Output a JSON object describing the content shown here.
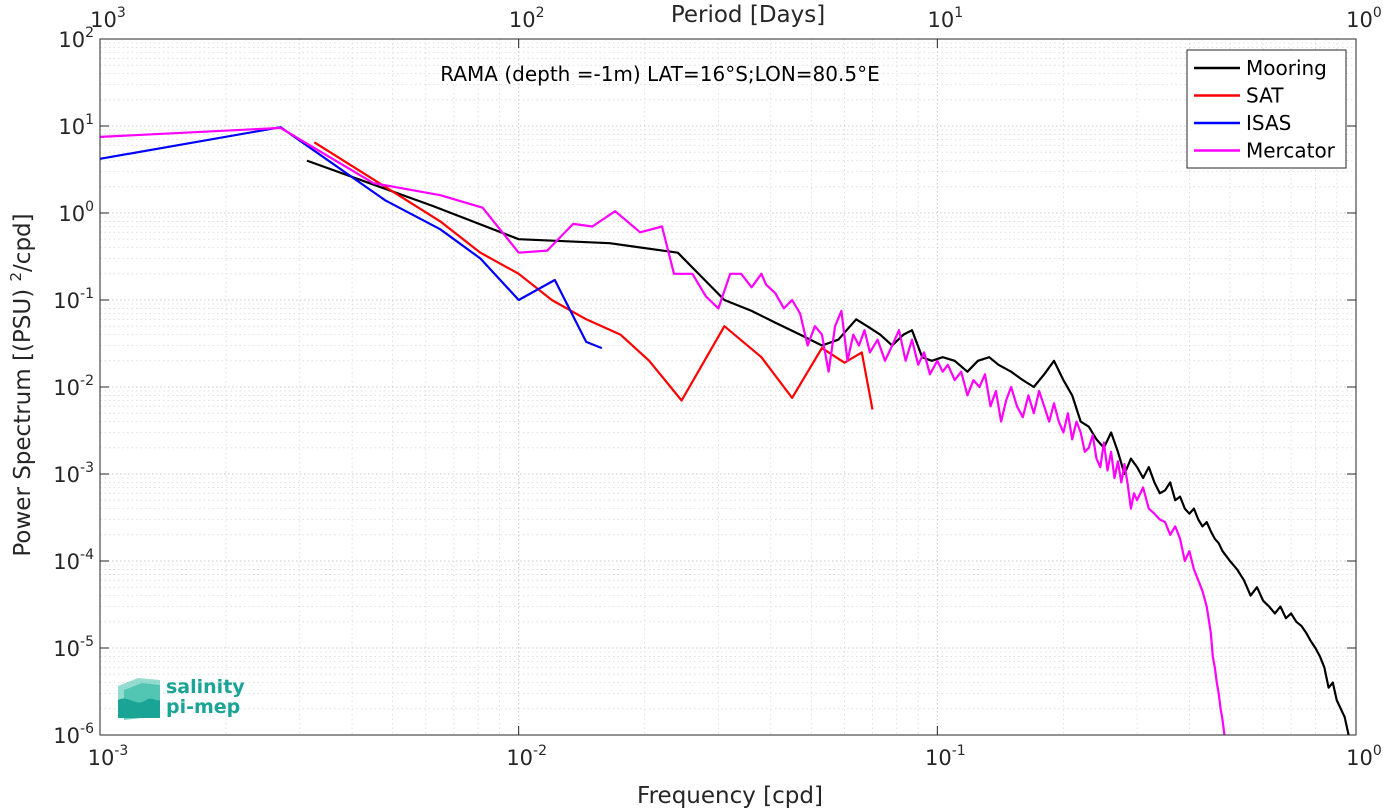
{
  "chart_data": {
    "type": "line",
    "title": "",
    "annotation": "RAMA (depth =-1m) LAT=16°S;LON=80.5°E",
    "xlabel": "Frequency [cpd]",
    "ylabel": "Power Spectrum [(PSU)²/cpd]",
    "top_xlabel": "Period [Days]",
    "x_scale": "log",
    "y_scale": "log",
    "xlim": [
      0.001,
      1
    ],
    "ylim": [
      1e-06,
      100
    ],
    "grid": true,
    "minor_grid": true,
    "legend_position": "top-right",
    "x_ticks": [
      0.001,
      0.01,
      0.1,
      1
    ],
    "x_tick_labels": [
      {
        "base": "10",
        "exp": "-3"
      },
      {
        "base": "10",
        "exp": "-2"
      },
      {
        "base": "10",
        "exp": "-1"
      },
      {
        "base": "10",
        "exp": "0"
      }
    ],
    "top_tick_labels": [
      {
        "base": "10",
        "exp": "3"
      },
      {
        "base": "10",
        "exp": "2"
      },
      {
        "base": "10",
        "exp": "1"
      },
      {
        "base": "10",
        "exp": "0"
      }
    ],
    "y_ticks": [
      1e-06,
      1e-05,
      0.0001,
      0.001,
      0.01,
      0.1,
      1,
      10,
      100
    ],
    "y_tick_labels": [
      {
        "base": "10",
        "exp": "-6"
      },
      {
        "base": "10",
        "exp": "-5"
      },
      {
        "base": "10",
        "exp": "-4"
      },
      {
        "base": "10",
        "exp": "-3"
      },
      {
        "base": "10",
        "exp": "-2"
      },
      {
        "base": "10",
        "exp": "-1"
      },
      {
        "base": "10",
        "exp": "0"
      },
      {
        "base": "10",
        "exp": "1"
      },
      {
        "base": "10",
        "exp": "2"
      }
    ],
    "series": [
      {
        "name": "Mooring",
        "color": "#000000",
        "points": [
          [
            0.00312,
            4.0
          ],
          [
            0.00625,
            1.2
          ],
          [
            0.01,
            0.5
          ],
          [
            0.0165,
            0.45
          ],
          [
            0.024,
            0.35
          ],
          [
            0.031,
            0.1
          ],
          [
            0.036,
            0.075
          ],
          [
            0.041,
            0.055
          ],
          [
            0.047,
            0.04
          ],
          [
            0.053,
            0.03
          ],
          [
            0.058,
            0.035
          ],
          [
            0.064,
            0.06
          ],
          [
            0.068,
            0.05
          ],
          [
            0.073,
            0.04
          ],
          [
            0.078,
            0.03
          ],
          [
            0.083,
            0.04
          ],
          [
            0.087,
            0.045
          ],
          [
            0.092,
            0.022
          ],
          [
            0.097,
            0.02
          ],
          [
            0.103,
            0.022
          ],
          [
            0.11,
            0.02
          ],
          [
            0.118,
            0.015
          ],
          [
            0.125,
            0.02
          ],
          [
            0.133,
            0.022
          ],
          [
            0.14,
            0.018
          ],
          [
            0.15,
            0.015
          ],
          [
            0.16,
            0.012
          ],
          [
            0.17,
            0.01
          ],
          [
            0.18,
            0.014
          ],
          [
            0.19,
            0.02
          ],
          [
            0.2,
            0.012
          ],
          [
            0.21,
            0.008
          ],
          [
            0.22,
            0.004
          ],
          [
            0.23,
            0.0035
          ],
          [
            0.24,
            0.0025
          ],
          [
            0.25,
            0.002
          ],
          [
            0.26,
            0.003
          ],
          [
            0.27,
            0.0018
          ],
          [
            0.28,
            0.001
          ],
          [
            0.29,
            0.0015
          ],
          [
            0.3,
            0.0012
          ],
          [
            0.31,
            0.0009
          ],
          [
            0.32,
            0.0012
          ],
          [
            0.33,
            0.0008
          ],
          [
            0.34,
            0.0006
          ],
          [
            0.35,
            0.00065
          ],
          [
            0.36,
            0.0008
          ],
          [
            0.37,
            0.0005
          ],
          [
            0.38,
            0.00055
          ],
          [
            0.39,
            0.0004
          ],
          [
            0.4,
            0.00035
          ],
          [
            0.41,
            0.0004
          ],
          [
            0.42,
            0.0003
          ],
          [
            0.43,
            0.00025
          ],
          [
            0.44,
            0.00028
          ],
          [
            0.45,
            0.00022
          ],
          [
            0.46,
            0.00018
          ],
          [
            0.47,
            0.00016
          ],
          [
            0.48,
            0.00013
          ],
          [
            0.5,
            0.0001
          ],
          [
            0.52,
            8e-05
          ],
          [
            0.54,
            6e-05
          ],
          [
            0.56,
            4e-05
          ],
          [
            0.58,
            5e-05
          ],
          [
            0.6,
            3.5e-05
          ],
          [
            0.62,
            3e-05
          ],
          [
            0.64,
            2.5e-05
          ],
          [
            0.66,
            3e-05
          ],
          [
            0.68,
            2.2e-05
          ],
          [
            0.7,
            2.5e-05
          ],
          [
            0.72,
            2e-05
          ],
          [
            0.74,
            1.8e-05
          ],
          [
            0.76,
            1.5e-05
          ],
          [
            0.78,
            1.2e-05
          ],
          [
            0.8,
            1e-05
          ],
          [
            0.82,
            8e-06
          ],
          [
            0.84,
            6e-06
          ],
          [
            0.86,
            3.5e-06
          ],
          [
            0.88,
            4e-06
          ],
          [
            0.9,
            2.5e-06
          ],
          [
            0.92,
            2e-06
          ],
          [
            0.94,
            1.6e-06
          ],
          [
            0.96,
            1e-06
          ]
        ]
      },
      {
        "name": "SAT",
        "color": "#ff0000",
        "points": [
          [
            0.00325,
            6.5
          ],
          [
            0.0048,
            2.0
          ],
          [
            0.0065,
            0.8
          ],
          [
            0.0081,
            0.35
          ],
          [
            0.01,
            0.2
          ],
          [
            0.012,
            0.1
          ],
          [
            0.0145,
            0.06
          ],
          [
            0.0175,
            0.04
          ],
          [
            0.0205,
            0.02
          ],
          [
            0.0245,
            0.007
          ],
          [
            0.031,
            0.05
          ],
          [
            0.038,
            0.022
          ],
          [
            0.045,
            0.0075
          ],
          [
            0.053,
            0.028
          ],
          [
            0.06,
            0.019
          ],
          [
            0.066,
            0.025
          ],
          [
            0.07,
            0.0055
          ]
        ]
      },
      {
        "name": "ISAS",
        "color": "#0000ff",
        "points": [
          [
            0.001,
            4.2
          ],
          [
            0.0027,
            9.7
          ],
          [
            0.0048,
            1.4
          ],
          [
            0.0065,
            0.65
          ],
          [
            0.0081,
            0.3
          ],
          [
            0.01,
            0.1
          ],
          [
            0.0122,
            0.17
          ],
          [
            0.0145,
            0.033
          ],
          [
            0.0158,
            0.028
          ]
        ]
      },
      {
        "name": "Mercator",
        "color": "#ff00ff",
        "points": [
          [
            0.001,
            7.5
          ],
          [
            0.0027,
            9.5
          ],
          [
            0.0045,
            2.2
          ],
          [
            0.0065,
            1.6
          ],
          [
            0.0082,
            1.15
          ],
          [
            0.01,
            0.35
          ],
          [
            0.0117,
            0.37
          ],
          [
            0.0135,
            0.75
          ],
          [
            0.015,
            0.7
          ],
          [
            0.017,
            1.05
          ],
          [
            0.0195,
            0.6
          ],
          [
            0.022,
            0.7
          ],
          [
            0.0235,
            0.2
          ],
          [
            0.026,
            0.2
          ],
          [
            0.028,
            0.11
          ],
          [
            0.03,
            0.08
          ],
          [
            0.032,
            0.2
          ],
          [
            0.034,
            0.2
          ],
          [
            0.036,
            0.14
          ],
          [
            0.038,
            0.2
          ],
          [
            0.039,
            0.15
          ],
          [
            0.041,
            0.12
          ],
          [
            0.043,
            0.08
          ],
          [
            0.045,
            0.1
          ],
          [
            0.047,
            0.07
          ],
          [
            0.049,
            0.03
          ],
          [
            0.051,
            0.05
          ],
          [
            0.053,
            0.04
          ],
          [
            0.055,
            0.015
          ],
          [
            0.057,
            0.05
          ],
          [
            0.059,
            0.075
          ],
          [
            0.061,
            0.02
          ],
          [
            0.063,
            0.04
          ],
          [
            0.065,
            0.03
          ],
          [
            0.067,
            0.045
          ],
          [
            0.069,
            0.025
          ],
          [
            0.072,
            0.035
          ],
          [
            0.075,
            0.02
          ],
          [
            0.078,
            0.03
          ],
          [
            0.081,
            0.045
          ],
          [
            0.084,
            0.02
          ],
          [
            0.087,
            0.035
          ],
          [
            0.09,
            0.018
          ],
          [
            0.093,
            0.025
          ],
          [
            0.096,
            0.014
          ],
          [
            0.1,
            0.02
          ],
          [
            0.103,
            0.015
          ],
          [
            0.106,
            0.018
          ],
          [
            0.11,
            0.012
          ],
          [
            0.114,
            0.015
          ],
          [
            0.118,
            0.008
          ],
          [
            0.122,
            0.012
          ],
          [
            0.126,
            0.01
          ],
          [
            0.13,
            0.014
          ],
          [
            0.134,
            0.006
          ],
          [
            0.138,
            0.009
          ],
          [
            0.142,
            0.004
          ],
          [
            0.146,
            0.007
          ],
          [
            0.15,
            0.01
          ],
          [
            0.155,
            0.006
          ],
          [
            0.16,
            0.0045
          ],
          [
            0.165,
            0.008
          ],
          [
            0.17,
            0.005
          ],
          [
            0.175,
            0.009
          ],
          [
            0.18,
            0.006
          ],
          [
            0.185,
            0.004
          ],
          [
            0.19,
            0.0065
          ],
          [
            0.195,
            0.004
          ],
          [
            0.2,
            0.003
          ],
          [
            0.205,
            0.005
          ],
          [
            0.21,
            0.0025
          ],
          [
            0.215,
            0.004
          ],
          [
            0.22,
            0.003
          ],
          [
            0.225,
            0.0018
          ],
          [
            0.23,
            0.002
          ],
          [
            0.235,
            0.0028
          ],
          [
            0.24,
            0.0015
          ],
          [
            0.245,
            0.0012
          ],
          [
            0.25,
            0.0023
          ],
          [
            0.255,
            0.0011
          ],
          [
            0.26,
            0.0018
          ],
          [
            0.265,
            0.0009
          ],
          [
            0.27,
            0.0014
          ],
          [
            0.275,
            0.0008
          ],
          [
            0.28,
            0.0013
          ],
          [
            0.285,
            0.00075
          ],
          [
            0.29,
            0.0004
          ],
          [
            0.295,
            0.0006
          ],
          [
            0.3,
            0.0005
          ],
          [
            0.31,
            0.0007
          ],
          [
            0.32,
            0.0004
          ],
          [
            0.33,
            0.00035
          ],
          [
            0.34,
            0.0003
          ],
          [
            0.35,
            0.00028
          ],
          [
            0.36,
            0.0002
          ],
          [
            0.37,
            0.00025
          ],
          [
            0.38,
            0.00018
          ],
          [
            0.39,
            0.0001
          ],
          [
            0.4,
            0.00013
          ],
          [
            0.41,
            8e-05
          ],
          [
            0.42,
            6e-05
          ],
          [
            0.43,
            4.5e-05
          ],
          [
            0.44,
            3e-05
          ],
          [
            0.45,
            1.5e-05
          ],
          [
            0.455,
            8e-06
          ],
          [
            0.46,
            6e-06
          ],
          [
            0.465,
            4e-06
          ],
          [
            0.47,
            3e-06
          ],
          [
            0.475,
            2e-06
          ],
          [
            0.48,
            1.5e-06
          ],
          [
            0.485,
            1e-06
          ]
        ]
      }
    ]
  },
  "logo": {
    "line1": "salinity",
    "line2": "pi-mep",
    "color_text": "#1aa496",
    "color_mark": "#3dbfa9"
  }
}
